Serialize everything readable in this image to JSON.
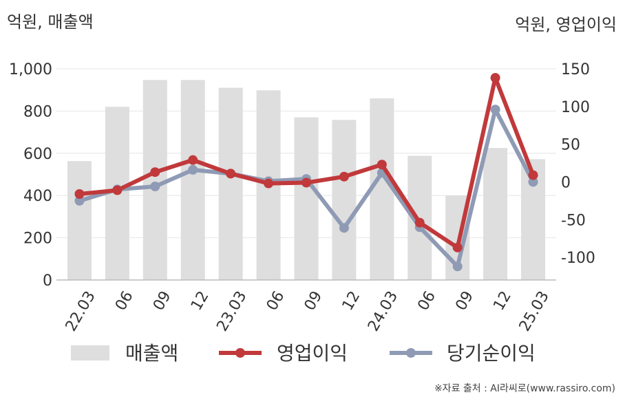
{
  "chart_data": {
    "type": "bar+line",
    "left_axis_label": "억원, 매출액",
    "right_axis_label": "억원, 영업이익",
    "categories": [
      "22.03",
      "06",
      "09",
      "12",
      "23.03",
      "06",
      "09",
      "12",
      "24.03",
      "06",
      "09",
      "12",
      "25.03"
    ],
    "series": [
      {
        "name": "매출액",
        "type": "bar",
        "axis": "left",
        "color": "#dedede",
        "values": [
          563,
          820,
          947,
          947,
          910,
          898,
          770,
          758,
          860,
          588,
          400,
          625,
          572
        ]
      },
      {
        "name": "영업이익",
        "type": "line",
        "axis": "right",
        "color": "#c1393b",
        "values": [
          -16,
          -11,
          13,
          29,
          11,
          -2,
          -1,
          7,
          23,
          -54,
          -87,
          138,
          9
        ]
      },
      {
        "name": "당기순이익",
        "type": "line",
        "axis": "right",
        "color": "#8f9bb5",
        "values": [
          -25,
          -10,
          -6,
          16,
          11,
          1,
          4,
          -61,
          12,
          -60,
          -112,
          96,
          0
        ]
      }
    ],
    "left_axis": {
      "ylim": [
        0,
        1000
      ],
      "ticks": [
        "0",
        "200",
        "400",
        "600",
        "800",
        "1,000"
      ]
    },
    "right_axis": {
      "ylim": [
        -130,
        150
      ],
      "ticks": [
        "-100",
        "-50",
        "0",
        "50",
        "100",
        "150"
      ]
    },
    "grid": true,
    "legend_position": "bottom"
  },
  "source_note": "※자료 출처 : AI라씨로(www.rassiro.com)"
}
